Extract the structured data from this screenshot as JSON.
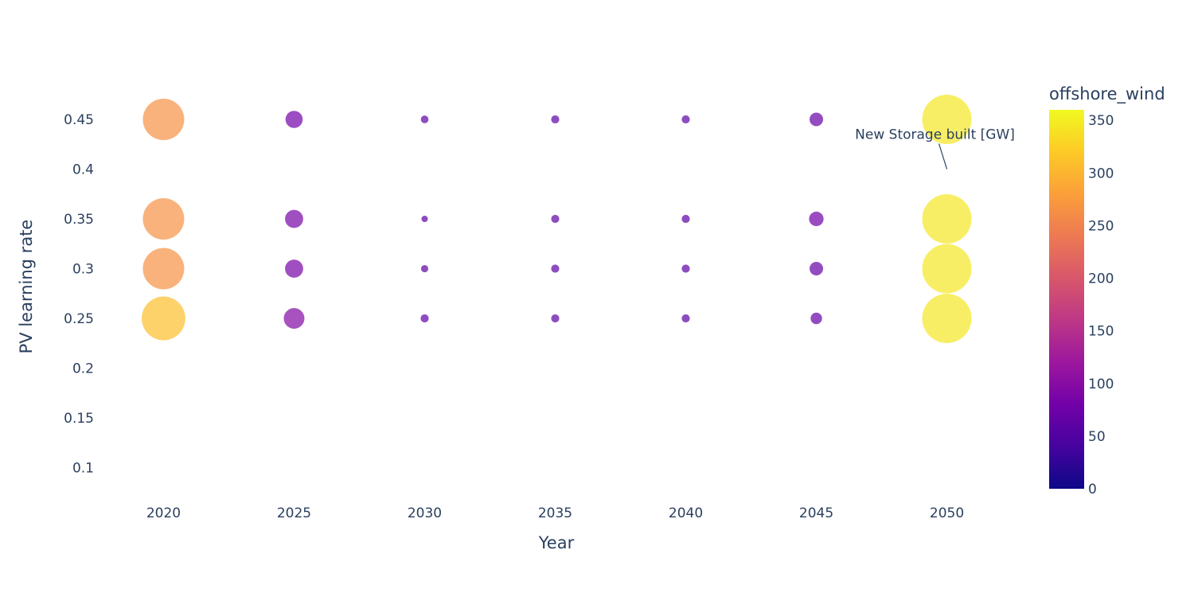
{
  "chart_data": {
    "type": "scatter",
    "subtype": "bubble",
    "xlabel": "Year",
    "ylabel": "PV learning rate",
    "xticks": [
      "2020",
      "2025",
      "2030",
      "2035",
      "2040",
      "2045",
      "2050"
    ],
    "yticks": [
      "0.1",
      "0.15",
      "0.2",
      "0.25",
      "0.3",
      "0.35",
      "0.4",
      "0.45"
    ],
    "xlim": [
      2017.7,
      2052.3
    ],
    "ylim": [
      0.07,
      0.49
    ],
    "grid": false,
    "colorbar": {
      "title": "offshore_wind",
      "range": [
        0,
        360
      ],
      "ticks": [
        "0",
        "50",
        "100",
        "150",
        "200",
        "250",
        "300",
        "350"
      ],
      "colorscale": "plasma"
    },
    "annotation": {
      "text": "New Storage built [GW]",
      "x": 2050,
      "y": 0.4
    },
    "points": [
      {
        "x": 2020,
        "y": 0.45,
        "size": 260,
        "color": 265
      },
      {
        "x": 2020,
        "y": 0.35,
        "size": 260,
        "color": 265
      },
      {
        "x": 2020,
        "y": 0.3,
        "size": 260,
        "color": 265
      },
      {
        "x": 2020,
        "y": 0.25,
        "size": 290,
        "color": 310
      },
      {
        "x": 2025,
        "y": 0.45,
        "size": 45,
        "color": 80
      },
      {
        "x": 2025,
        "y": 0.35,
        "size": 50,
        "color": 85
      },
      {
        "x": 2025,
        "y": 0.3,
        "size": 50,
        "color": 85
      },
      {
        "x": 2025,
        "y": 0.25,
        "size": 65,
        "color": 95
      },
      {
        "x": 2030,
        "y": 0.45,
        "size": 9,
        "color": 60
      },
      {
        "x": 2030,
        "y": 0.35,
        "size": 6,
        "color": 60
      },
      {
        "x": 2030,
        "y": 0.3,
        "size": 8,
        "color": 60
      },
      {
        "x": 2030,
        "y": 0.25,
        "size": 10,
        "color": 60
      },
      {
        "x": 2035,
        "y": 0.45,
        "size": 10,
        "color": 60
      },
      {
        "x": 2035,
        "y": 0.35,
        "size": 10,
        "color": 60
      },
      {
        "x": 2035,
        "y": 0.3,
        "size": 10,
        "color": 60
      },
      {
        "x": 2035,
        "y": 0.25,
        "size": 10,
        "color": 60
      },
      {
        "x": 2040,
        "y": 0.45,
        "size": 10,
        "color": 60
      },
      {
        "x": 2040,
        "y": 0.35,
        "size": 10,
        "color": 60
      },
      {
        "x": 2040,
        "y": 0.3,
        "size": 10,
        "color": 60
      },
      {
        "x": 2040,
        "y": 0.25,
        "size": 10,
        "color": 60
      },
      {
        "x": 2045,
        "y": 0.45,
        "size": 28,
        "color": 70
      },
      {
        "x": 2045,
        "y": 0.35,
        "size": 32,
        "color": 75
      },
      {
        "x": 2045,
        "y": 0.3,
        "size": 28,
        "color": 70
      },
      {
        "x": 2045,
        "y": 0.25,
        "size": 20,
        "color": 65
      },
      {
        "x": 2050,
        "y": 0.45,
        "size": 370,
        "color": 345
      },
      {
        "x": 2050,
        "y": 0.35,
        "size": 370,
        "color": 345
      },
      {
        "x": 2050,
        "y": 0.3,
        "size": 370,
        "color": 345
      },
      {
        "x": 2050,
        "y": 0.25,
        "size": 370,
        "color": 345
      }
    ]
  }
}
